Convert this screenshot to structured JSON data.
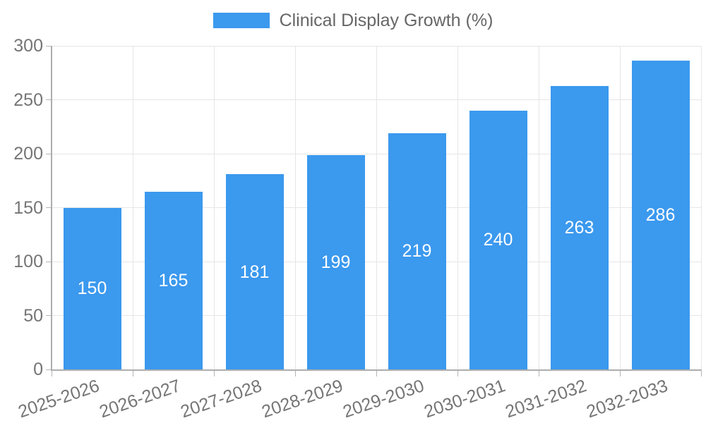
{
  "chart_data": {
    "type": "bar",
    "title": "Clinical Display Growth (%)",
    "legend_position": "top",
    "categories": [
      "2025-2026",
      "2026-2027",
      "2027-2028",
      "2028-2029",
      "2029-2030",
      "2030-2031",
      "2031-2032",
      "2032-2033"
    ],
    "values": [
      150,
      165,
      181,
      199,
      219,
      240,
      263,
      286
    ],
    "xlabel": "",
    "ylabel": "",
    "ylim": [
      0,
      300
    ],
    "yticks": [
      0,
      50,
      100,
      150,
      200,
      250,
      300
    ],
    "grid": true,
    "bar_label_position": "inside-center",
    "colors": {
      "bar": "#3B99EE",
      "bar_label": "#FFFFFF",
      "tick_text": "#757575",
      "legend_text": "#666666",
      "grid": "#E6E6E6",
      "tick_mark": "#B5B5B5",
      "axis": "#ADADAD",
      "background": "#FFFFFF"
    }
  }
}
